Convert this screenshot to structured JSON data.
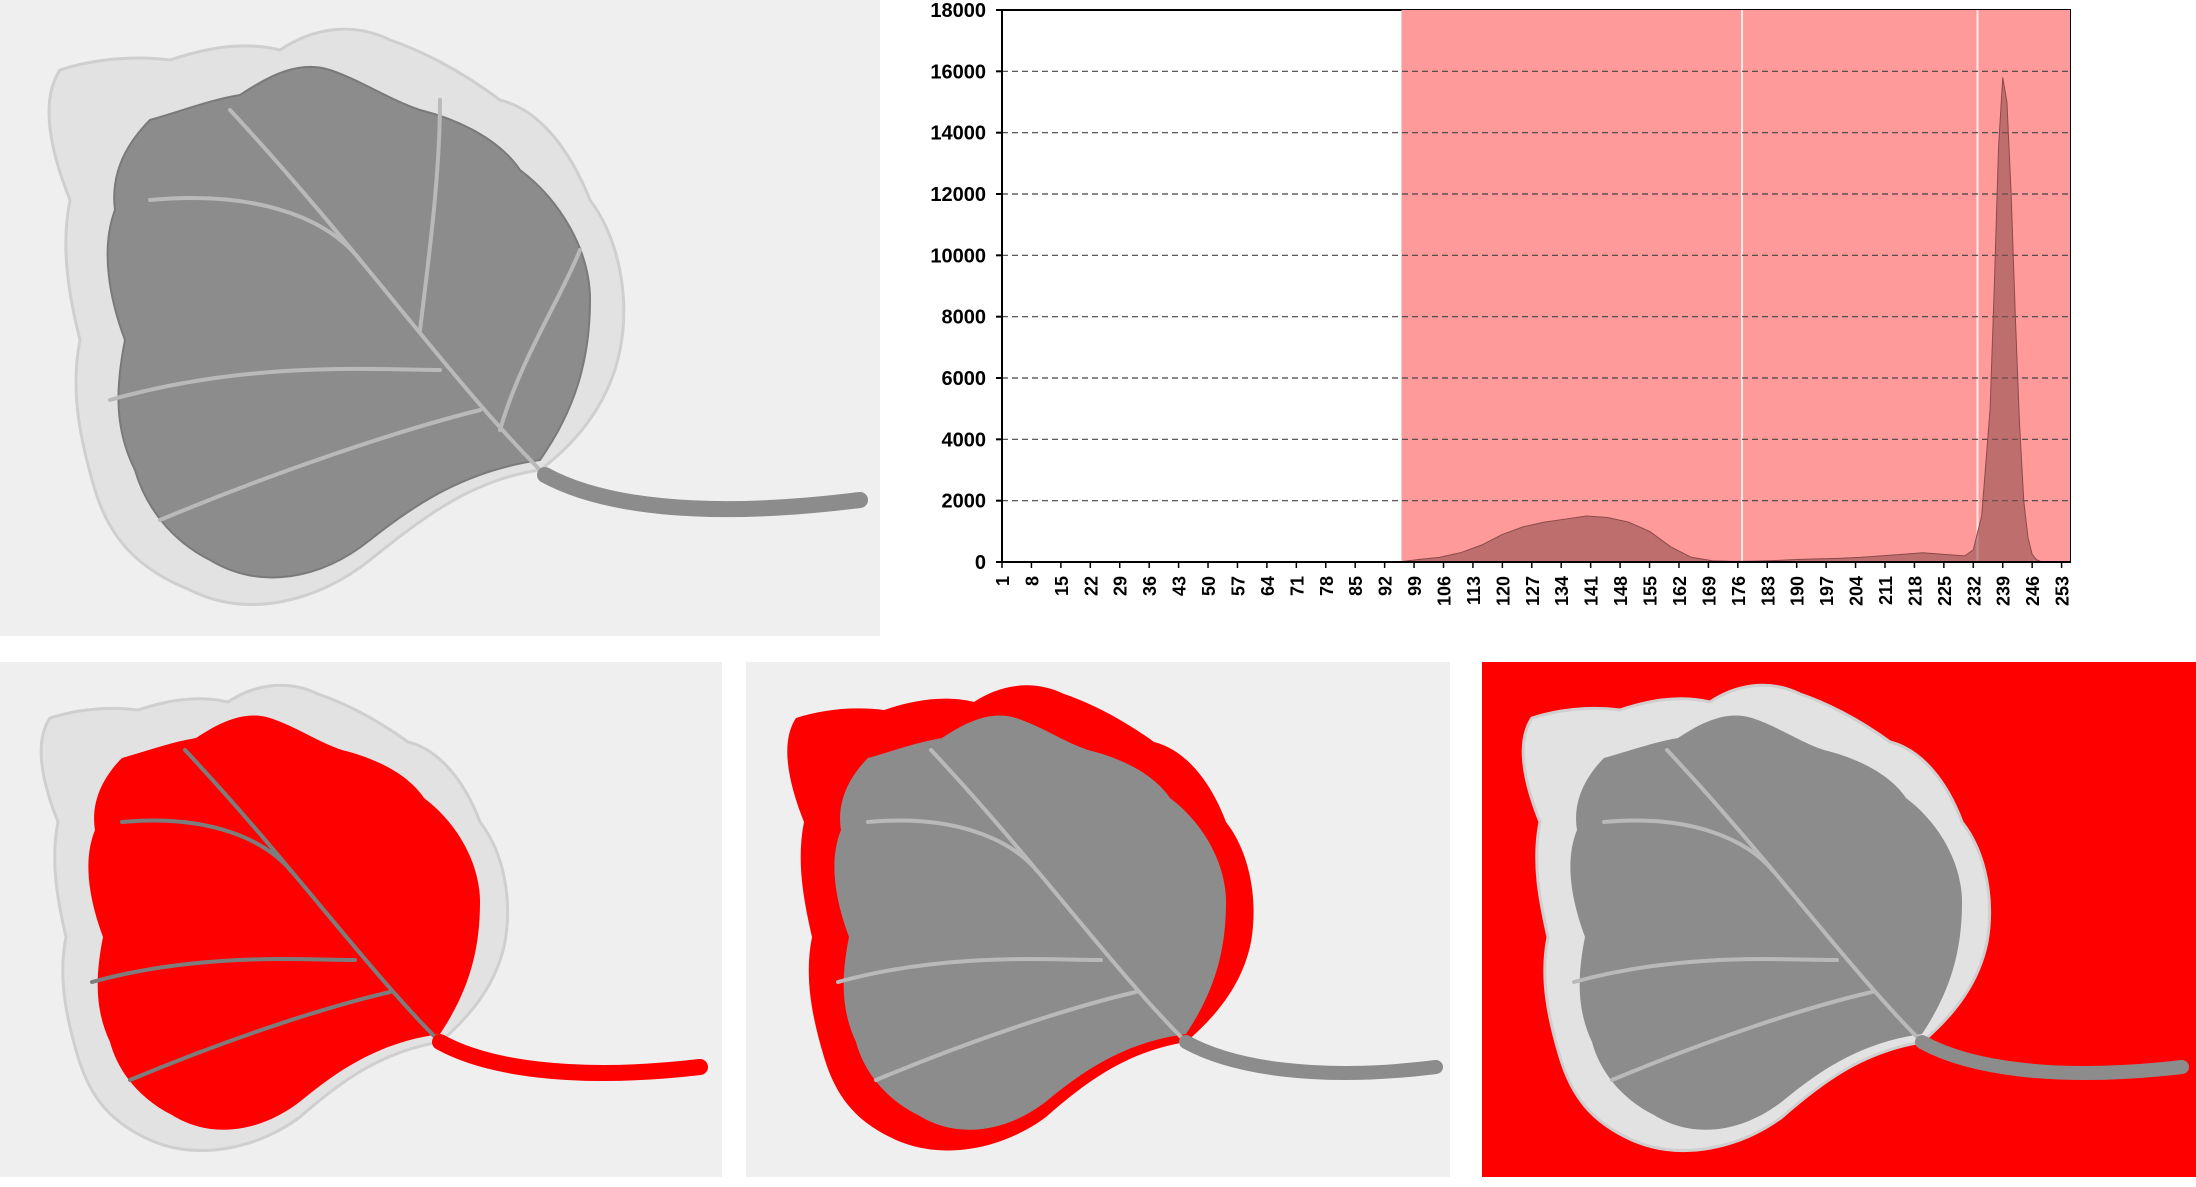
{
  "colors": {
    "highlight": "#ff0000",
    "histogram_fill": "#8b4a4a",
    "shaded_band": "#ff9a9a",
    "leaf_green": "#8c8c8c",
    "leaf_pale": "#e2e2e2",
    "background": "#efefef"
  },
  "panels": [
    {
      "name": "original-leaf",
      "highlight": "none"
    },
    {
      "name": "leaf-green-region",
      "highlight": "green"
    },
    {
      "name": "leaf-pale-margin",
      "highlight": "margin"
    },
    {
      "name": "leaf-background",
      "highlight": "background"
    }
  ],
  "chart_data": {
    "type": "area",
    "title": "",
    "xlabel": "",
    "ylabel": "",
    "xlim": [
      1,
      255
    ],
    "ylim": [
      0,
      18000
    ],
    "yticks": [
      0,
      2000,
      4000,
      6000,
      8000,
      10000,
      12000,
      14000,
      16000,
      18000
    ],
    "xtick_labels": [
      "1",
      "8",
      "15",
      "22",
      "29",
      "36",
      "43",
      "50",
      "57",
      "64",
      "71",
      "78",
      "85",
      "92",
      "99",
      "106",
      "113",
      "120",
      "127",
      "134",
      "141",
      "148",
      "155",
      "162",
      "169",
      "176",
      "183",
      "190",
      "197",
      "204",
      "211",
      "218",
      "225",
      "232",
      "239",
      "246",
      "253"
    ],
    "grid": "horizontal dashed",
    "shaded_range": [
      96,
      255
    ],
    "band_separators": [
      177,
      233
    ],
    "x": [
      1,
      95,
      97,
      100,
      105,
      110,
      115,
      120,
      125,
      130,
      135,
      140,
      145,
      150,
      155,
      160,
      165,
      170,
      175,
      180,
      185,
      190,
      195,
      200,
      205,
      210,
      215,
      220,
      225,
      230,
      232,
      234,
      236,
      237,
      238,
      239,
      240,
      241,
      242,
      243,
      244,
      245,
      246,
      247,
      248,
      255
    ],
    "values": [
      0,
      0,
      30,
      80,
      150,
      300,
      550,
      900,
      1150,
      1300,
      1400,
      1500,
      1450,
      1300,
      1000,
      500,
      150,
      40,
      20,
      30,
      50,
      80,
      100,
      120,
      150,
      200,
      250,
      300,
      250,
      200,
      400,
      1500,
      5000,
      9000,
      13500,
      15800,
      15000,
      12000,
      8000,
      4500,
      2000,
      800,
      250,
      80,
      20,
      0
    ]
  }
}
